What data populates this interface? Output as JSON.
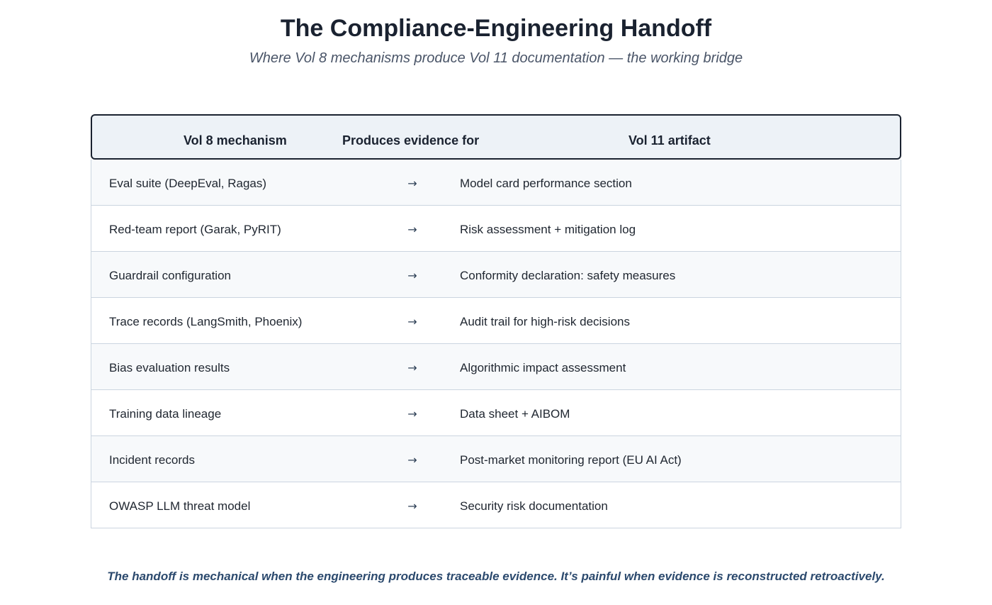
{
  "title": "The Compliance-Engineering Handoff",
  "subtitle": "Where Vol 8 mechanisms produce Vol 11 documentation — the working bridge",
  "table": {
    "headers": {
      "mechanism": "Vol 8 mechanism",
      "produces": "Produces evidence for",
      "artifact": "Vol 11 artifact"
    },
    "arrow": "→",
    "rows": [
      {
        "mechanism": "Eval suite (DeepEval, Ragas)",
        "artifact": "Model card performance section"
      },
      {
        "mechanism": "Red-team report (Garak, PyRIT)",
        "artifact": "Risk assessment + mitigation log"
      },
      {
        "mechanism": "Guardrail configuration",
        "artifact": "Conformity declaration: safety measures"
      },
      {
        "mechanism": "Trace records (LangSmith, Phoenix)",
        "artifact": "Audit trail for high-risk decisions"
      },
      {
        "mechanism": "Bias evaluation results",
        "artifact": "Algorithmic impact assessment"
      },
      {
        "mechanism": "Training data lineage",
        "artifact": "Data sheet + AIBOM"
      },
      {
        "mechanism": "Incident records",
        "artifact": "Post-market monitoring report (EU AI Act)"
      },
      {
        "mechanism": "OWASP LLM threat model",
        "artifact": "Security risk documentation"
      }
    ]
  },
  "footer": "The handoff is mechanical when the engineering produces traceable evidence. It’s painful when evidence is reconstructed retroactively."
}
